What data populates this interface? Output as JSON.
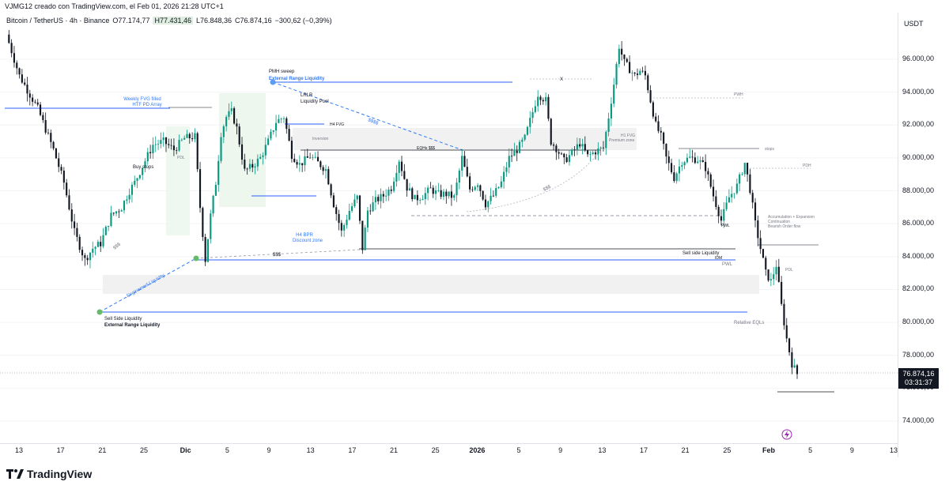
{
  "header": {
    "credit": "VJMG12 creado con TradingView.com, el Feb 01, 2026 21:28 UTC+1",
    "symbol": "Bitcoin / TetherUS · 4h · Binance",
    "open": "O77.174,77",
    "high": "H77.431,46",
    "low": "L76.848,36",
    "close": "C76.874,16",
    "change": "−300,62 (−0,39%)"
  },
  "currency": "USDT",
  "last_price": {
    "value": "76.874,16",
    "countdown": "03:31:37"
  },
  "brand": {
    "name": "TradingView"
  },
  "colors": {
    "up": "#089981",
    "down": "#131722",
    "blue": "#2962ff",
    "annotation_blue": "#3179f5",
    "green_point": "#66bb6a"
  },
  "annotations": {
    "pmh_sweep": "PMH sweep",
    "external_range_liq_top": "External Range Liquidity",
    "weekly_fvg": "Weekly FVG filled",
    "htf_pd": "HTF PD Array",
    "lrlr": "LRLR",
    "liquidity_pool": "Liquidity Pool",
    "h4_fvg": "H4 FVG",
    "inversion": "Inversion",
    "eqhs": "EQHs $$$",
    "x_mark": "X",
    "h1_fvg": "H1 FVG",
    "premium_zone": "Premium zone",
    "pwh": "PWH",
    "stops": "stops",
    "pdh": "PDH",
    "pdl_left": "PDL",
    "buy_stops": "Buy stops",
    "dollars_diag": "$$$$",
    "dollars_arc": "$$$",
    "dollars_left": "$$$",
    "dollars_mid": "$$$",
    "h4_bpr": "H4 BPR",
    "discount_zone": "Discount zone",
    "engineered_liq": "Engineered Liquidity",
    "ssl_label": "Sell Side Liquidity",
    "external_range_liq_bottom": "External Range Liquidity",
    "pwl_upper": "PWL",
    "accumulation": "Accumulation + Expansion",
    "continuation": "Continuation",
    "bearish_flow": "Bearish Order flow",
    "ssl_right": "Sell side Liquidity",
    "idm": "IDM",
    "pwl_lower": "PWL",
    "pdl_right": "PDL",
    "relative_eqls": "Relative EQLs"
  },
  "chart_data": {
    "type": "candlestick",
    "symbol": "Bitcoin / TetherUS",
    "interval": "4h",
    "exchange": "Binance",
    "y_ticks": [
      96000,
      94000,
      92000,
      90000,
      88000,
      86000,
      84000,
      82000,
      80000,
      78000,
      76000,
      74000
    ],
    "y_tick_labels": [
      "96.000,00",
      "94.000,00",
      "92.000,00",
      "90.000,00",
      "88.000,00",
      "86.000,00",
      "84.000,00",
      "82.000,00",
      "80.000,00",
      "78.000,00",
      "76.000,00",
      "74.000,00"
    ],
    "ylim": [
      72500,
      98500
    ],
    "x_ticks": [
      "13",
      "17",
      "21",
      "25",
      "Dic",
      "5",
      "9",
      "13",
      "17",
      "21",
      "25",
      "2026",
      "5",
      "9",
      "13",
      "17",
      "21",
      "25",
      "Feb",
      "5",
      "9",
      "13"
    ],
    "path": [
      [
        0,
        97500
      ],
      [
        5,
        95000
      ],
      [
        12,
        93000
      ],
      [
        18,
        90500
      ],
      [
        22,
        88500
      ],
      [
        26,
        85500
      ],
      [
        30,
        83800
      ],
      [
        33,
        84500
      ],
      [
        36,
        84800
      ],
      [
        40,
        86500
      ],
      [
        44,
        87000
      ],
      [
        47,
        88000
      ],
      [
        49,
        88500
      ],
      [
        52,
        89500
      ],
      [
        56,
        90800
      ],
      [
        60,
        91000
      ],
      [
        64,
        90500
      ],
      [
        68,
        91200
      ],
      [
        72,
        91300
      ],
      [
        74,
        87000
      ],
      [
        76,
        83800
      ],
      [
        78,
        86500
      ],
      [
        80,
        88500
      ],
      [
        82,
        91500
      ],
      [
        84,
        92500
      ],
      [
        86,
        92800
      ],
      [
        88,
        91800
      ],
      [
        91,
        89200
      ],
      [
        94,
        89500
      ],
      [
        97,
        90000
      ],
      [
        100,
        91000
      ],
      [
        103,
        92200
      ],
      [
        106,
        92500
      ],
      [
        109,
        90200
      ],
      [
        112,
        89600
      ],
      [
        116,
        90100
      ],
      [
        119,
        89700
      ],
      [
        122,
        89300
      ],
      [
        125,
        87200
      ],
      [
        128,
        85500
      ],
      [
        131,
        86800
      ],
      [
        134,
        87600
      ],
      [
        136,
        84500
      ],
      [
        138,
        86800
      ],
      [
        141,
        87400
      ],
      [
        144,
        87700
      ],
      [
        147,
        88200
      ],
      [
        150,
        89900
      ],
      [
        153,
        88200
      ],
      [
        156,
        87500
      ],
      [
        159,
        87700
      ],
      [
        162,
        88100
      ],
      [
        165,
        87800
      ],
      [
        168,
        87800
      ],
      [
        171,
        87600
      ],
      [
        174,
        90000
      ],
      [
        177,
        88100
      ],
      [
        180,
        88500
      ],
      [
        183,
        87200
      ],
      [
        186,
        87700
      ],
      [
        189,
        88500
      ],
      [
        192,
        90000
      ],
      [
        195,
        90500
      ],
      [
        198,
        91200
      ],
      [
        201,
        92800
      ],
      [
        203,
        93900
      ],
      [
        206,
        93500
      ],
      [
        208,
        91000
      ],
      [
        210,
        90600
      ],
      [
        213,
        89800
      ],
      [
        216,
        90300
      ],
      [
        219,
        90900
      ],
      [
        222,
        90100
      ],
      [
        225,
        90400
      ],
      [
        228,
        90600
      ],
      [
        230,
        92500
      ],
      [
        232,
        94500
      ],
      [
        234,
        96800
      ],
      [
        236,
        95800
      ],
      [
        238,
        95400
      ],
      [
        240,
        95000
      ],
      [
        242,
        95300
      ],
      [
        244,
        95000
      ],
      [
        246,
        93500
      ],
      [
        248,
        92000
      ],
      [
        250,
        91300
      ],
      [
        252,
        90000
      ],
      [
        255,
        88800
      ],
      [
        258,
        89800
      ],
      [
        261,
        90000
      ],
      [
        264,
        89900
      ],
      [
        267,
        89400
      ],
      [
        270,
        87700
      ],
      [
        273,
        86200
      ],
      [
        276,
        87600
      ],
      [
        279,
        88300
      ],
      [
        282,
        89700
      ],
      [
        284,
        88100
      ],
      [
        286,
        86000
      ],
      [
        288,
        84500
      ],
      [
        290,
        83000
      ],
      [
        292,
        82500
      ],
      [
        294,
        83500
      ],
      [
        296,
        81000
      ],
      [
        298,
        79000
      ],
      [
        300,
        77500
      ],
      [
        302,
        76874
      ]
    ]
  }
}
